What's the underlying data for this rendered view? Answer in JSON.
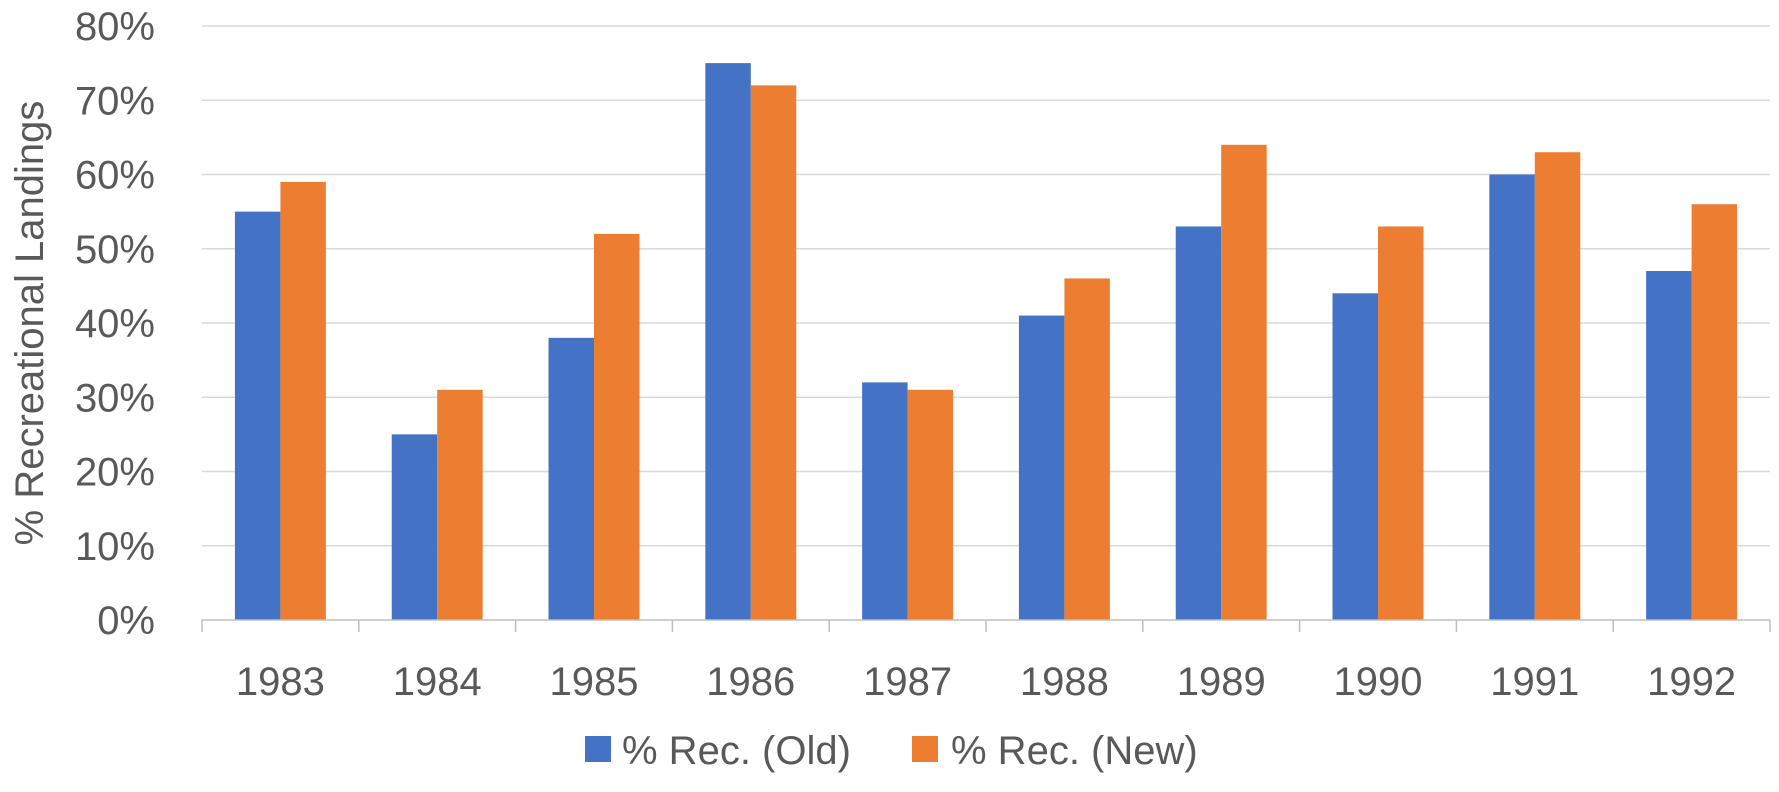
{
  "chart_data": {
    "type": "bar",
    "title": "",
    "xlabel": "",
    "ylabel": "% Recreational Landings",
    "ylim": [
      0,
      80
    ],
    "y_unit": "%",
    "y_ticks": [
      "0%",
      "10%",
      "20%",
      "30%",
      "40%",
      "50%",
      "60%",
      "70%",
      "80%"
    ],
    "grid": true,
    "legend_position": "bottom",
    "categories": [
      "1983",
      "1984",
      "1985",
      "1986",
      "1987",
      "1988",
      "1989",
      "1990",
      "1991",
      "1992"
    ],
    "series": [
      {
        "name": "% Rec. (Old)",
        "color": "#4472C4",
        "values": [
          55,
          25,
          38,
          75,
          32,
          41,
          53,
          44,
          60,
          47
        ]
      },
      {
        "name": "% Rec. (New)",
        "color": "#ED7D31",
        "values": [
          59,
          31,
          52,
          72,
          31,
          46,
          64,
          53,
          63,
          56
        ]
      }
    ]
  }
}
